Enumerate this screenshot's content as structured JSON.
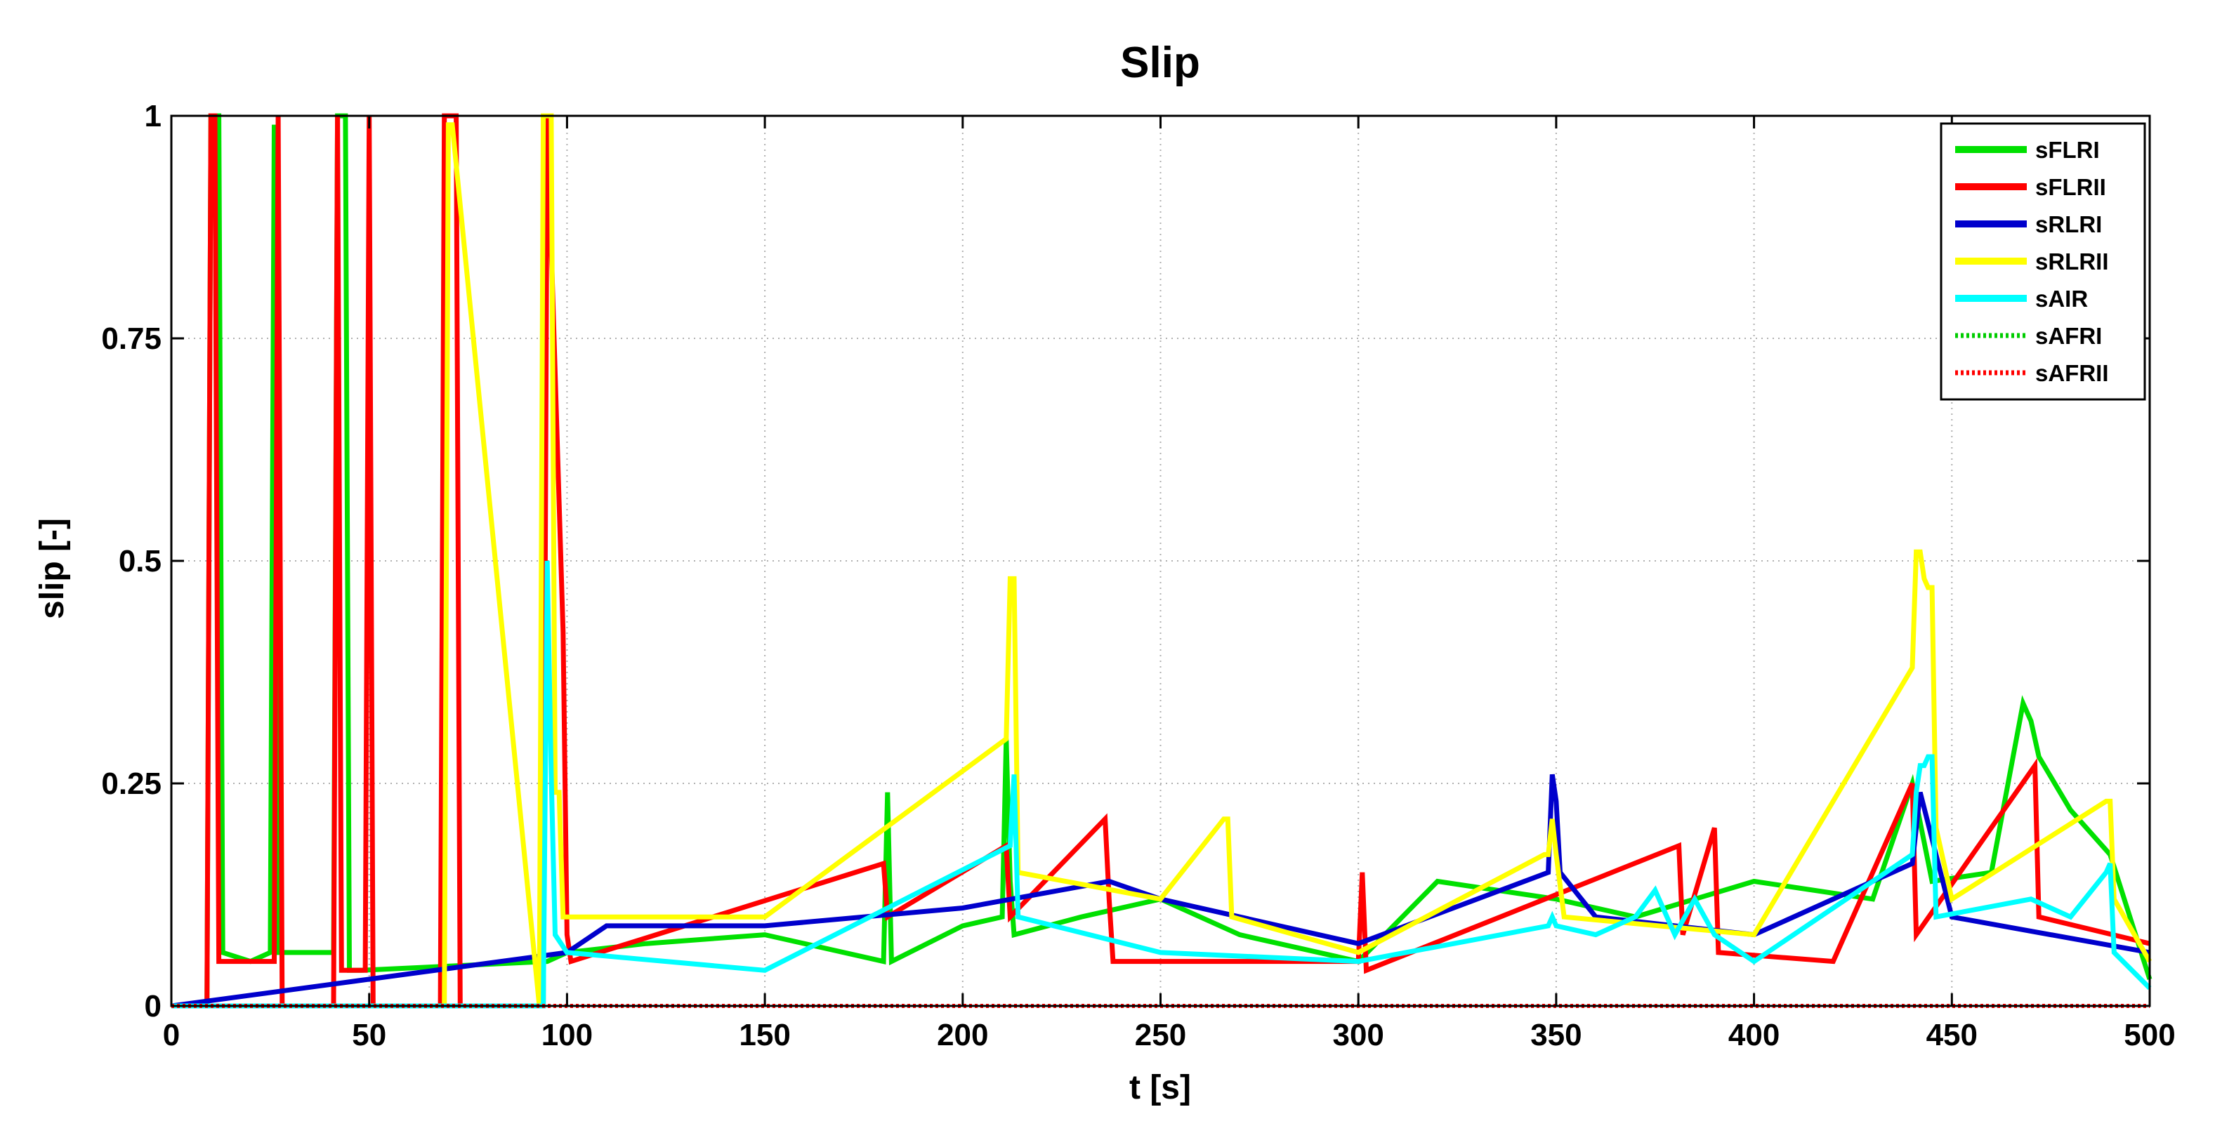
{
  "chart_data": {
    "type": "line",
    "title": "Slip",
    "xlabel": "t [s]",
    "ylabel": "slip [-]",
    "xlim": [
      0,
      500
    ],
    "ylim": [
      0,
      1
    ],
    "xticks": [
      0,
      50,
      100,
      150,
      200,
      250,
      300,
      350,
      400,
      450,
      500
    ],
    "yticks": [
      0,
      0.25,
      0.5,
      0.75,
      1
    ],
    "ytick_labels": [
      "0",
      "0.25",
      "0.5",
      "0.75",
      "1"
    ],
    "grid": true,
    "legend_position": "top-right",
    "series": [
      {
        "name": "sFLRI",
        "color": "#00e000",
        "style": "solid",
        "x": [
          0,
          9,
          10,
          11,
          12,
          13,
          20,
          25,
          26,
          27,
          41,
          42,
          43,
          44,
          45,
          46,
          48,
          95,
          100,
          120,
          150,
          180,
          181,
          182,
          200,
          210,
          211,
          212,
          213,
          230,
          250,
          270,
          300,
          320,
          350,
          370,
          400,
          430,
          440,
          445,
          460,
          468,
          470,
          472,
          480,
          490,
          500
        ],
        "y": [
          0,
          0,
          1,
          1,
          1,
          0.06,
          0.05,
          0.06,
          0.99,
          0.06,
          0.06,
          1,
          1,
          1,
          0.04,
          0.04,
          0.04,
          0.05,
          0.06,
          0.07,
          0.08,
          0.05,
          0.24,
          0.05,
          0.09,
          0.1,
          0.3,
          0.14,
          0.08,
          0.1,
          0.12,
          0.08,
          0.05,
          0.14,
          0.12,
          0.1,
          0.14,
          0.12,
          0.25,
          0.14,
          0.15,
          0.34,
          0.32,
          0.28,
          0.22,
          0.17,
          0.03
        ]
      },
      {
        "name": "sFLRII",
        "color": "#ff0000",
        "style": "solid",
        "x": [
          0,
          9,
          10,
          11,
          12,
          26,
          27,
          28,
          41,
          42,
          43,
          49,
          50,
          51,
          68,
          69,
          72,
          73,
          94,
          95,
          99,
          100,
          101,
          180,
          181,
          211,
          212,
          236,
          237,
          238,
          300,
          301,
          302,
          381,
          382,
          390,
          391,
          420,
          440,
          441,
          471,
          472,
          500
        ],
        "y": [
          0,
          0,
          1,
          1,
          0.05,
          0.05,
          1,
          0,
          0,
          1,
          0.04,
          0.04,
          1,
          0,
          0,
          1,
          1,
          0,
          0,
          1,
          0.42,
          0.08,
          0.05,
          0.16,
          0.1,
          0.18,
          0.1,
          0.21,
          0.12,
          0.05,
          0.05,
          0.15,
          0.04,
          0.18,
          0.08,
          0.2,
          0.06,
          0.05,
          0.25,
          0.08,
          0.27,
          0.1,
          0.07
        ]
      },
      {
        "name": "sRLRI",
        "color": "#0000cc",
        "style": "solid",
        "x": [
          0,
          100,
          110,
          150,
          200,
          237,
          250,
          300,
          348,
          349,
          350,
          351,
          360,
          400,
          440,
          442,
          450,
          500
        ],
        "y": [
          0,
          0.06,
          0.09,
          0.09,
          0.11,
          0.14,
          0.12,
          0.07,
          0.15,
          0.26,
          0.23,
          0.15,
          0.1,
          0.08,
          0.16,
          0.24,
          0.1,
          0.06
        ]
      },
      {
        "name": "sRLRII",
        "color": "#ffff00",
        "style": "solid",
        "x": [
          0,
          69,
          70,
          71,
          93,
          94,
          95,
          96,
          97,
          98,
          99,
          100,
          150,
          211,
          212,
          213,
          214,
          250,
          266,
          267,
          268,
          300,
          347,
          348,
          349,
          350,
          352,
          400,
          440,
          441,
          442,
          443,
          444,
          445,
          446,
          450,
          489,
          490,
          491,
          500
        ],
        "y": [
          0,
          0,
          0.99,
          0.99,
          0,
          1,
          1,
          1,
          0.24,
          0.24,
          0.1,
          0.1,
          0.1,
          0.3,
          0.48,
          0.48,
          0.15,
          0.12,
          0.21,
          0.21,
          0.1,
          0.06,
          0.17,
          0.17,
          0.21,
          0.17,
          0.1,
          0.08,
          0.38,
          0.51,
          0.51,
          0.48,
          0.47,
          0.47,
          0.2,
          0.12,
          0.23,
          0.23,
          0.12,
          0.05
        ]
      },
      {
        "name": "sAIR",
        "color": "#00ffff",
        "style": "solid",
        "x": [
          0,
          94,
          95,
          96,
          97,
          100,
          150,
          212,
          213,
          214,
          250,
          300,
          348,
          349,
          350,
          360,
          370,
          375,
          380,
          385,
          390,
          400,
          440,
          441,
          442,
          443,
          444,
          445,
          446,
          470,
          480,
          489,
          490,
          491,
          500
        ],
        "y": [
          0,
          0,
          0.5,
          0.26,
          0.08,
          0.06,
          0.04,
          0.18,
          0.26,
          0.1,
          0.06,
          0.05,
          0.09,
          0.1,
          0.09,
          0.08,
          0.1,
          0.13,
          0.08,
          0.12,
          0.08,
          0.05,
          0.17,
          0.24,
          0.27,
          0.27,
          0.28,
          0.28,
          0.1,
          0.12,
          0.1,
          0.15,
          0.16,
          0.06,
          0.02
        ]
      },
      {
        "name": "sAFRI",
        "color": "#00cc00",
        "style": "dotted",
        "x": [
          0,
          500
        ],
        "y": [
          0,
          0
        ]
      },
      {
        "name": "sAFRII",
        "color": "#ff0000",
        "style": "dotted",
        "x": [
          0,
          500
        ],
        "y": [
          0,
          0
        ]
      }
    ]
  }
}
